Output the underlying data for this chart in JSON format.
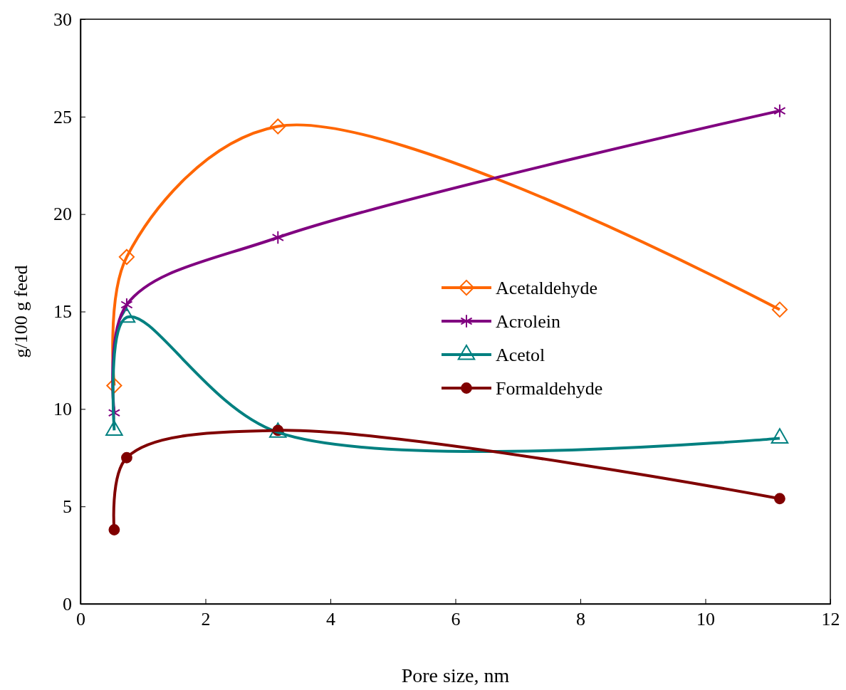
{
  "chart_data": {
    "type": "line",
    "xlabel": "Pore size, nm",
    "ylabel": "g/100 g feed",
    "x": [
      0.54,
      0.74,
      3.16,
      11.19
    ],
    "series": [
      {
        "name": "Acetaldehyde",
        "color": "#ff6600",
        "marker": "diamond",
        "values": [
          11.2,
          17.8,
          24.5,
          15.1
        ]
      },
      {
        "name": "Acrolein",
        "color": "#800080",
        "marker": "cross",
        "values": [
          9.8,
          15.35,
          18.8,
          25.3
        ]
      },
      {
        "name": "Acetol",
        "color": "#008080",
        "marker": "triangle",
        "values": [
          8.9,
          14.7,
          8.8,
          8.5
        ]
      },
      {
        "name": "Formaldehyde",
        "color": "#800000",
        "marker": "circle",
        "values": [
          3.8,
          7.5,
          8.9,
          5.4
        ]
      }
    ],
    "xlim": [
      0,
      12
    ],
    "xticks": [
      0,
      2,
      4,
      6,
      8,
      10,
      12
    ],
    "ylim": [
      0,
      30
    ],
    "yticks": [
      0,
      5,
      10,
      15,
      20,
      25,
      30
    ],
    "legend": "right",
    "grid": false,
    "line_style": "solid"
  }
}
